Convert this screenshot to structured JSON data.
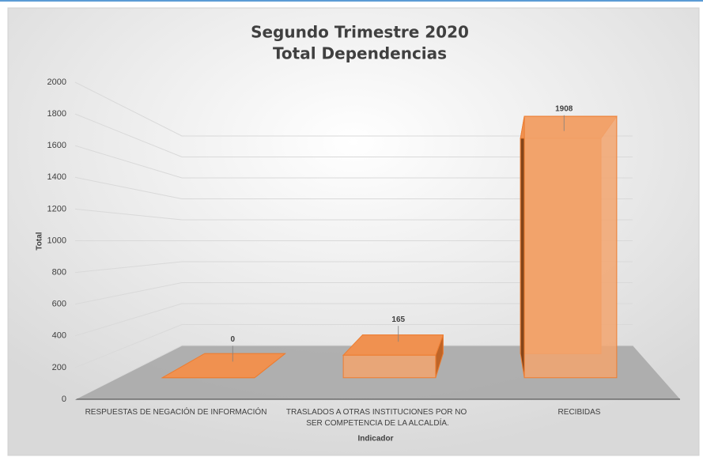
{
  "chart_data": {
    "type": "bar3d",
    "title": "Segundo Trimestre 2020",
    "subtitle": "Total Dependencias",
    "y_label": "Total",
    "x_label": "Indicador",
    "categories": [
      "RESPUESTAS DE NEGACIÓN DE INFORMACIÓN",
      "TRASLADOS A OTRAS INSTITUCIONES POR NO SER COMPETENCIA DE LA ALCALDÍA.",
      "RECIBIDAS"
    ],
    "values": [
      0,
      165,
      1908
    ],
    "color": "#ed7d31",
    "ylim": [
      0,
      2000
    ],
    "yticks": [
      0,
      200,
      400,
      600,
      800,
      1000,
      1200,
      1400,
      1600,
      1800,
      2000
    ],
    "grid": true
  }
}
